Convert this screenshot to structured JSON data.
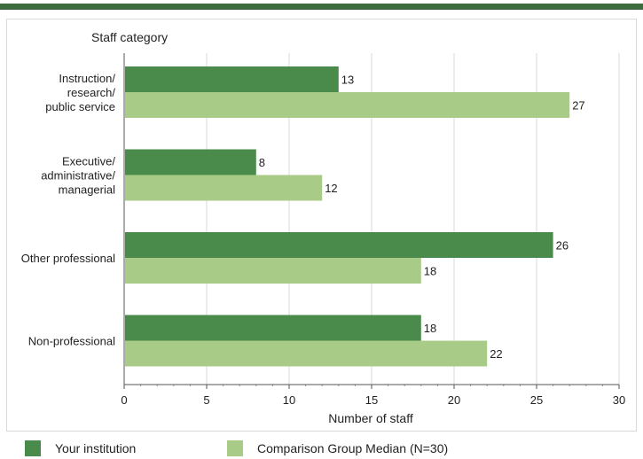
{
  "colors": {
    "your_institution": "#4a8a4a",
    "comparison_median": "#a8cc88",
    "grid": "#d9d9d9",
    "axis": "#555555",
    "text": "#222222"
  },
  "legend": {
    "items": [
      {
        "label": "Your institution",
        "color": "#4a8a4a"
      },
      {
        "label": "Comparison Group Median (N=30)",
        "color": "#a8cc88"
      }
    ]
  },
  "chart_data": {
    "type": "bar",
    "orientation": "horizontal",
    "ylabel": "Staff category",
    "xlabel": "Number of staff",
    "xlim": [
      0,
      30
    ],
    "xticks": [
      0,
      5,
      10,
      15,
      20,
      25,
      30
    ],
    "grid": true,
    "legend_position": "bottom",
    "categories": [
      [
        "Instruction/",
        "research/",
        "public service"
      ],
      [
        "Executive/",
        "administrative/",
        "managerial"
      ],
      [
        "Other professional"
      ],
      [
        "Non-professional"
      ]
    ],
    "series": [
      {
        "name": "Your institution",
        "values": [
          13,
          8,
          26,
          18
        ]
      },
      {
        "name": "Comparison Group Median (N=30)",
        "values": [
          27,
          12,
          18,
          22
        ]
      }
    ]
  }
}
